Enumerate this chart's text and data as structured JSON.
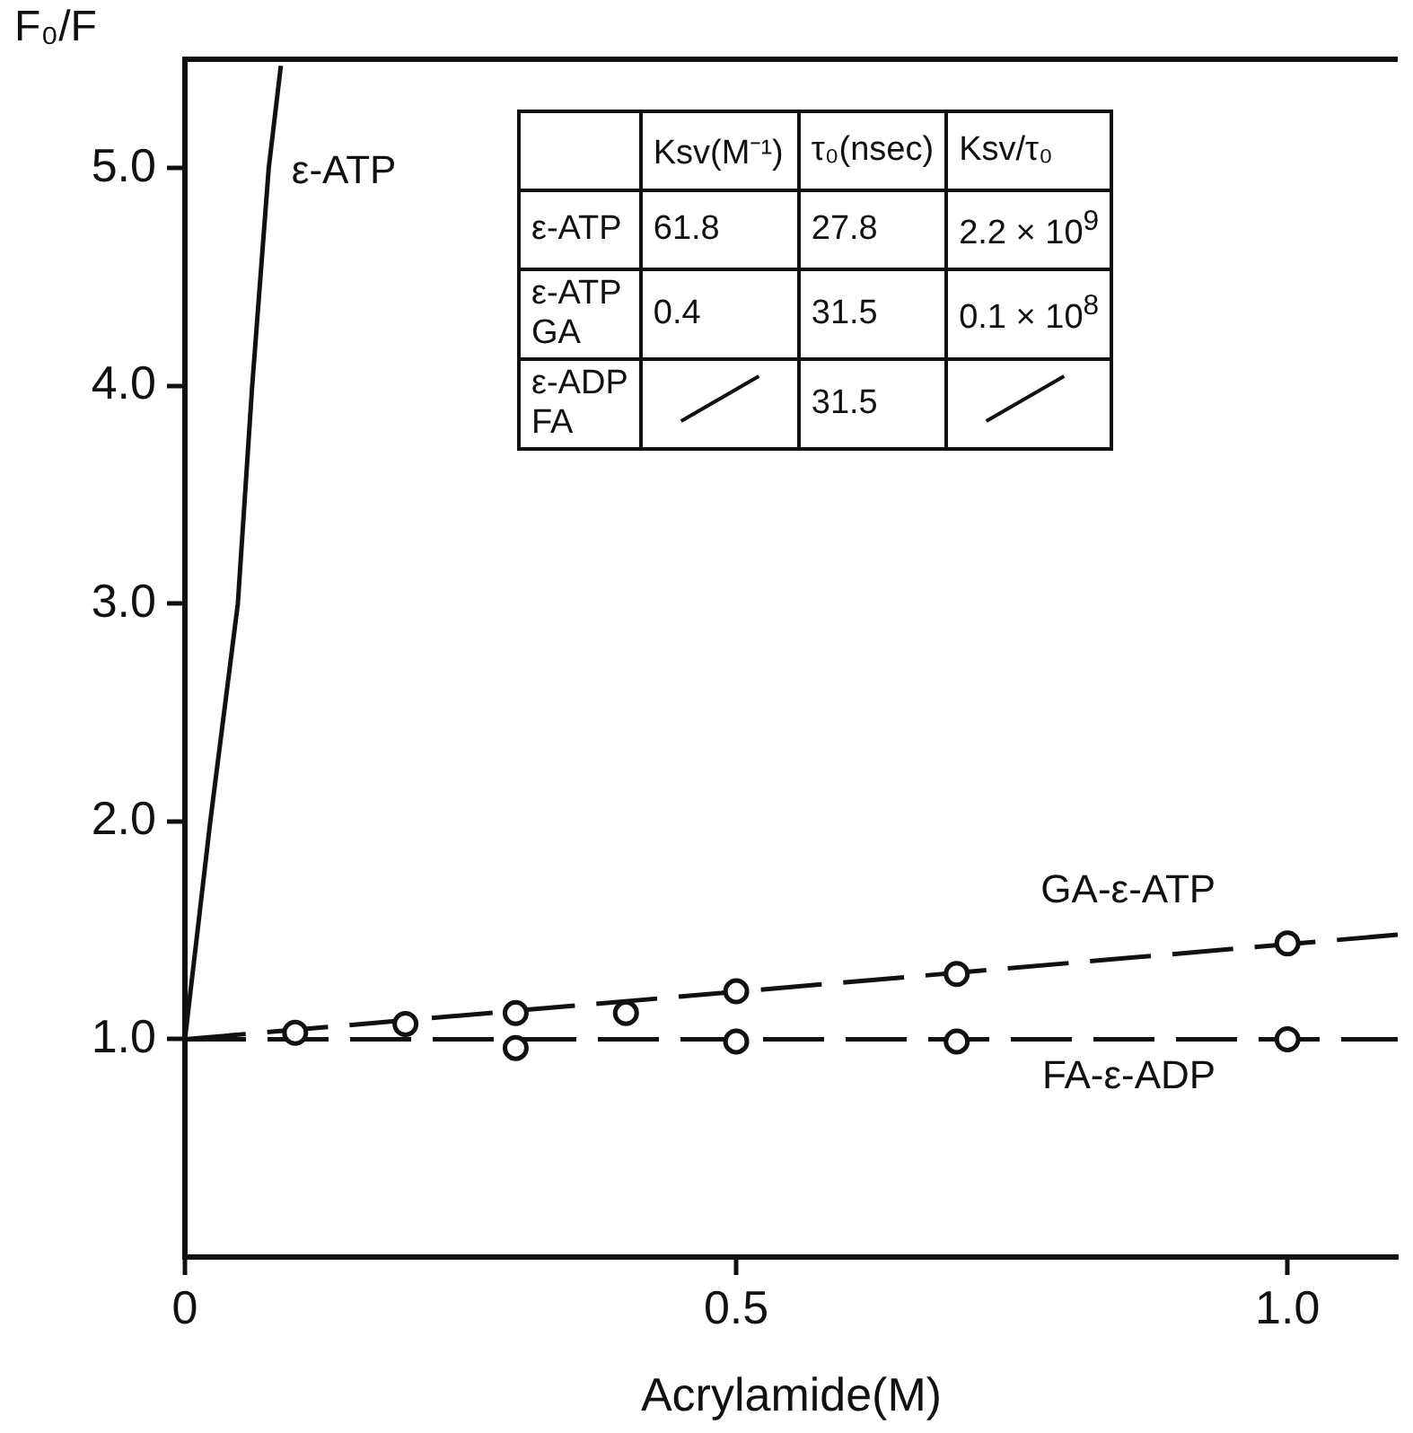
{
  "chart_data": {
    "type": "line",
    "xlabel": "Acrylamide(M)",
    "ylabel": "F₀/F",
    "xlim": [
      0,
      1.1
    ],
    "ylim": [
      0,
      5.5
    ],
    "xticks": [
      0,
      0.5,
      {
        "value": 1,
        "label": "1.0"
      }
    ],
    "yticks": [
      {
        "value": 1,
        "label": "1.0"
      },
      {
        "value": 2,
        "label": "2.0"
      },
      {
        "value": 3,
        "label": "3.0"
      },
      {
        "value": 4,
        "label": "4.0"
      },
      {
        "value": 5,
        "label": "5.0"
      }
    ],
    "grid": false,
    "legend": false,
    "series": [
      {
        "name": "ε-ATP",
        "color": "#111111",
        "line_style": "solid",
        "marker": "none",
        "x": [
          0,
          0.023,
          0.048,
          0.061,
          0.076,
          0.087
        ],
        "values": [
          1,
          2,
          3,
          4,
          5,
          5.47
        ]
      },
      {
        "name": "GA-ε-ATP",
        "type": "scatter",
        "color": "#111111",
        "marker": "circle",
        "x": [
          0.1,
          0.2,
          0.3,
          0.4,
          0.5,
          0.7,
          1.0
        ],
        "values": [
          1.03,
          1.07,
          1.12,
          1.12,
          1.22,
          1.3,
          1.44
        ]
      },
      {
        "type": "line",
        "color": "#111111",
        "line_style": "dashed",
        "marker": "none",
        "x": [
          0,
          1.1
        ],
        "values": [
          1,
          1.48
        ]
      },
      {
        "name": "FA-ε-ADP",
        "type": "scatter",
        "color": "#111111",
        "marker": "circle",
        "x": [
          0.3,
          0.5,
          0.7,
          1.0
        ],
        "values": [
          0.96,
          0.99,
          0.99,
          1.0
        ]
      },
      {
        "type": "line",
        "color": "#111111",
        "line_style": "dashed",
        "marker": "none",
        "x": [
          0,
          1.1
        ],
        "values": [
          1,
          1
        ]
      }
    ],
    "annotations": [
      null,
      "Ksv(M⁻¹)",
      "τ₀(nsec)",
      "Ksv/τ₀",
      "ε-ATP",
      "61.8",
      "27.8",
      "2.2 × 10$^{9}$",
      "ε-ATP GA",
      "0.4",
      "31.5",
      "0.1 × 10$^{8}$",
      "ε-ADP FA",
      null,
      "31.5",
      null
    ]
  }
}
